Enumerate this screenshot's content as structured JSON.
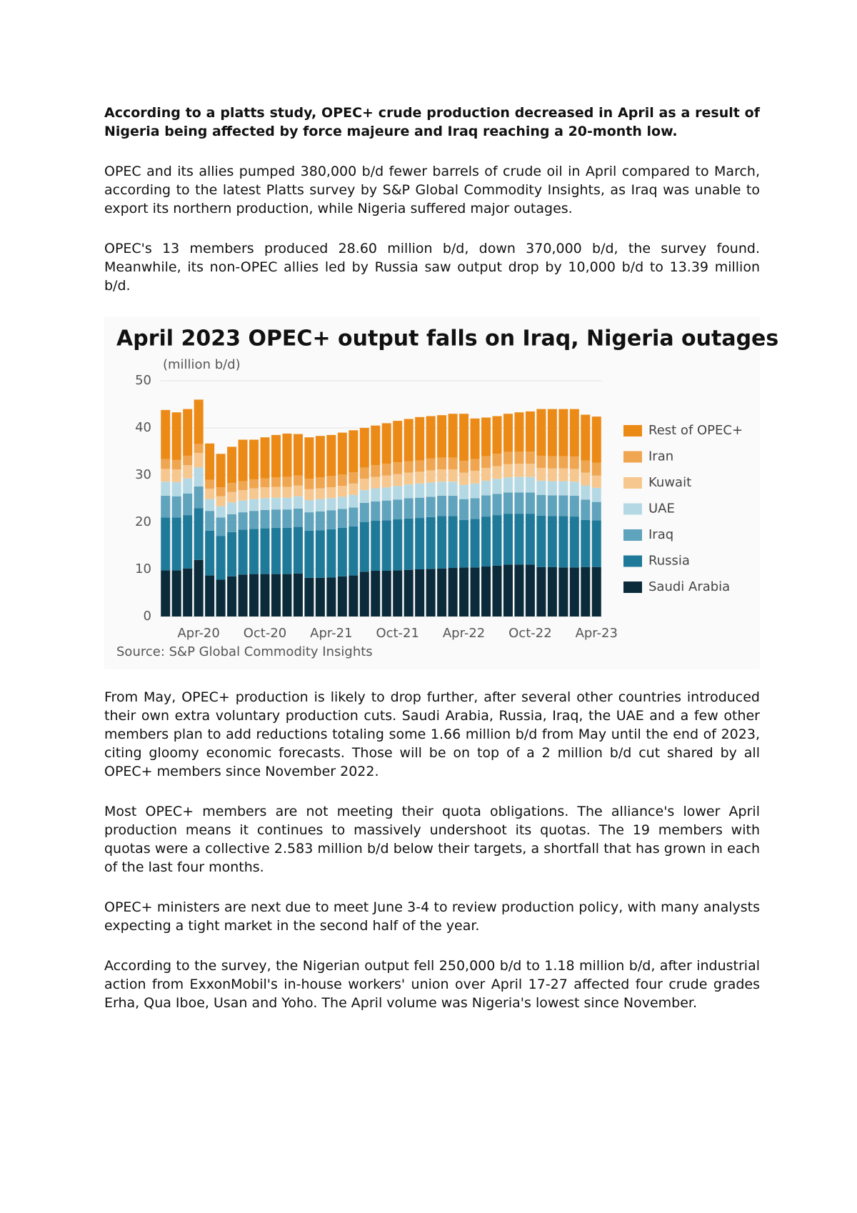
{
  "article": {
    "lead": "According to a platts study, OPEC+ crude production decreased in April as a result of Nigeria being affected by force majeure and Iraq reaching a 20-month low.",
    "intro": [
      "OPEC and its allies pumped 380,000 b/d fewer barrels of crude oil in April compared to March, according to the latest Platts survey by S&P Global Commodity Insights, as Iraq was unable to export its northern production, while Nigeria suffered major outages.",
      "OPEC's 13 members produced 28.60 million b/d, down 370,000 b/d, the survey found. Meanwhile, its non-OPEC allies led by Russia saw output drop by 10,000 b/d to 13.39 million b/d."
    ],
    "body": [
      "From May, OPEC+ production is likely to drop further, after several other countries introduced their own extra voluntary production cuts. Saudi Arabia, Russia, Iraq, the UAE and a few other members plan to add reductions totaling some 1.66 million b/d from May until the end of 2023, citing gloomy economic forecasts. Those will be on top of a 2 million b/d cut shared by all OPEC+ members since November 2022.",
      "Most OPEC+ members are not meeting their quota obligations. The alliance's lower April production means it continues to massively undershoot its quotas. The 19 members with quotas were a collective 2.583 million b/d below their targets, a shortfall that has grown in each of the last four months.",
      "OPEC+ ministers are next due to meet June 3-4 to review production policy, with many analysts expecting a tight market in the second half of the year.",
      "According to the survey, the Nigerian output fell 250,000 b/d to 1.18 million b/d, after industrial action from ExxonMobil's in-house workers' union over April 17-27 affected four crude grades Erha, Qua Iboe, Usan and Yoho. The April volume was Nigeria's lowest since November."
    ]
  },
  "chart_data": {
    "type": "stacked_bar",
    "title": "April 2023 OPEC+ output falls on Iraq, Nigeria outages",
    "y_label": "(million b/d)",
    "source": "Source: S&P Global Commodity Insights",
    "categories": [
      null,
      null,
      null,
      "Apr-20",
      null,
      null,
      null,
      null,
      null,
      "Oct-20",
      null,
      null,
      null,
      null,
      null,
      "Apr-21",
      null,
      null,
      null,
      null,
      null,
      "Oct-21",
      null,
      null,
      null,
      null,
      null,
      "Apr-22",
      null,
      null,
      null,
      null,
      null,
      "Oct-22",
      null,
      null,
      null,
      null,
      null,
      "Apr-23"
    ],
    "ylim": [
      0,
      50
    ],
    "yticks": [
      0,
      10,
      20,
      30,
      40,
      50
    ],
    "grid": true,
    "legend": "right",
    "series": [
      {
        "name": "Saudi Arabia",
        "color": "#0b2a3a",
        "values": [
          9.8,
          9.8,
          10.2,
          12.0,
          8.7,
          7.8,
          8.5,
          8.9,
          9.0,
          9.0,
          9.0,
          9.0,
          9.1,
          8.2,
          8.2,
          8.3,
          8.5,
          8.7,
          9.5,
          9.7,
          9.7,
          9.8,
          9.9,
          10.0,
          10.1,
          10.2,
          10.3,
          10.4,
          10.4,
          10.6,
          10.8,
          11.0,
          11.0,
          11.0,
          10.5,
          10.5,
          10.4,
          10.4,
          10.5,
          10.5
        ]
      },
      {
        "name": "Russia",
        "color": "#1f7a99",
        "values": [
          11.2,
          11.2,
          11.3,
          11.0,
          9.5,
          9.3,
          9.4,
          9.5,
          9.6,
          9.7,
          9.8,
          9.8,
          9.9,
          10.0,
          10.1,
          10.2,
          10.3,
          10.4,
          10.5,
          10.6,
          10.7,
          10.8,
          10.9,
          10.9,
          11.0,
          11.1,
          11.0,
          10.1,
          10.3,
          10.6,
          10.7,
          10.8,
          10.8,
          10.8,
          10.9,
          10.8,
          10.9,
          10.8,
          10.0,
          9.9
        ]
      },
      {
        "name": "Iraq",
        "color": "#5fa3bd",
        "values": [
          4.6,
          4.5,
          4.6,
          4.6,
          4.2,
          3.9,
          3.8,
          3.7,
          3.8,
          3.9,
          3.9,
          3.9,
          3.9,
          3.9,
          4.0,
          4.0,
          4.0,
          4.0,
          4.1,
          4.1,
          4.2,
          4.2,
          4.3,
          4.3,
          4.3,
          4.3,
          4.3,
          4.4,
          4.4,
          4.5,
          4.5,
          4.5,
          4.5,
          4.5,
          4.4,
          4.4,
          4.4,
          4.4,
          4.3,
          3.9
        ]
      },
      {
        "name": "UAE",
        "color": "#b5d9e4",
        "values": [
          3.0,
          3.0,
          3.2,
          4.0,
          2.5,
          2.4,
          2.5,
          2.5,
          2.5,
          2.5,
          2.5,
          2.5,
          2.6,
          2.6,
          2.6,
          2.6,
          2.6,
          2.7,
          2.7,
          2.8,
          2.8,
          2.9,
          2.9,
          3.0,
          3.0,
          3.0,
          3.0,
          3.0,
          3.1,
          3.1,
          3.2,
          3.2,
          3.3,
          3.3,
          3.0,
          3.0,
          3.0,
          3.0,
          3.0,
          3.0
        ]
      },
      {
        "name": "Kuwait",
        "color": "#f6c890",
        "values": [
          2.7,
          2.7,
          2.8,
          3.1,
          2.2,
          2.1,
          2.2,
          2.2,
          2.3,
          2.3,
          2.3,
          2.3,
          2.3,
          2.3,
          2.3,
          2.3,
          2.3,
          2.4,
          2.4,
          2.4,
          2.5,
          2.5,
          2.5,
          2.5,
          2.6,
          2.6,
          2.6,
          2.6,
          2.7,
          2.7,
          2.7,
          2.8,
          2.8,
          2.8,
          2.7,
          2.7,
          2.7,
          2.7,
          2.7,
          2.6
        ]
      },
      {
        "name": "Iran",
        "color": "#f0a650",
        "values": [
          2.1,
          2.0,
          2.0,
          1.9,
          1.9,
          1.9,
          1.9,
          1.9,
          1.9,
          1.9,
          2.0,
          2.1,
          2.1,
          2.2,
          2.3,
          2.4,
          2.4,
          2.4,
          2.4,
          2.5,
          2.5,
          2.5,
          2.4,
          2.4,
          2.5,
          2.5,
          2.5,
          2.5,
          2.5,
          2.5,
          2.6,
          2.6,
          2.6,
          2.6,
          2.6,
          2.6,
          2.6,
          2.6,
          2.6,
          2.7
        ]
      },
      {
        "name": "Rest of OPEC+",
        "color": "#ec8a17",
        "values": [
          10.4,
          10.1,
          9.9,
          9.4,
          7.7,
          7.1,
          7.7,
          8.8,
          8.4,
          8.7,
          9.0,
          9.2,
          8.8,
          8.8,
          8.8,
          8.7,
          8.9,
          8.9,
          8.4,
          8.4,
          8.6,
          8.8,
          9.0,
          9.2,
          9.0,
          9.0,
          9.3,
          10.0,
          8.6,
          8.2,
          8.0,
          8.1,
          8.3,
          8.5,
          9.9,
          10.0,
          10.0,
          10.1,
          9.7,
          9.8
        ]
      }
    ]
  }
}
